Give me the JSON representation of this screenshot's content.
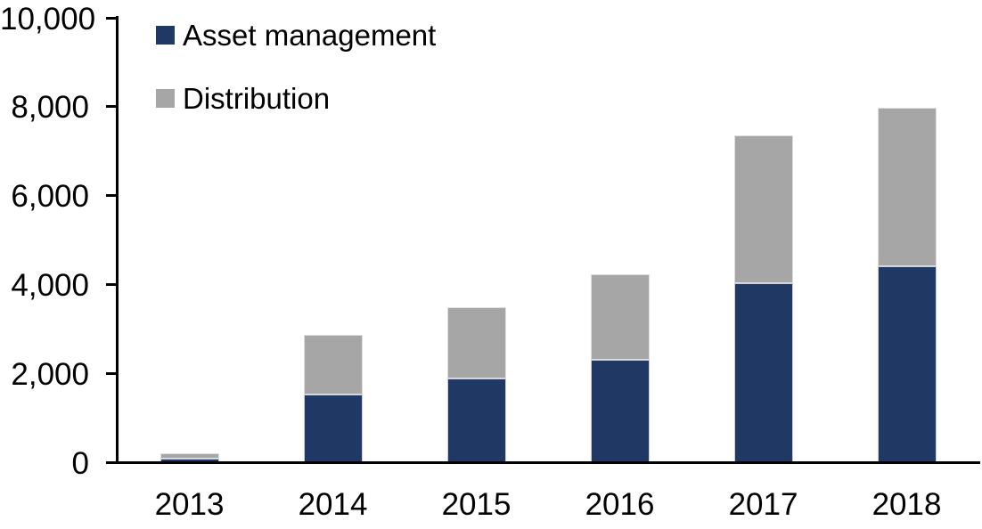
{
  "chart_data": {
    "type": "bar",
    "stacked": true,
    "title": "",
    "xlabel": "",
    "ylabel": "",
    "categories": [
      "2013",
      "2014",
      "2015",
      "2016",
      "2017",
      "2018"
    ],
    "series": [
      {
        "name": "Asset management",
        "color": "#1f3864",
        "values": [
          90,
          1530,
          1880,
          2300,
          4030,
          4400
        ]
      },
      {
        "name": "Distribution",
        "color": "#a6a6a6",
        "values": [
          120,
          1340,
          1610,
          1930,
          3330,
          3580
        ]
      }
    ],
    "totals": [
      210,
      2870,
      3490,
      4230,
      7360,
      7980
    ],
    "ylim": [
      0,
      10000
    ],
    "yticks": [
      0,
      2000,
      4000,
      6000,
      8000,
      10000
    ],
    "ytick_labels": [
      "0",
      "2,000",
      "4,000",
      "6,000",
      "8,000",
      "10,000"
    ],
    "grid": false,
    "legend_position": "top-left-inside",
    "axis_color": "#000000",
    "background_color": "#ffffff"
  }
}
